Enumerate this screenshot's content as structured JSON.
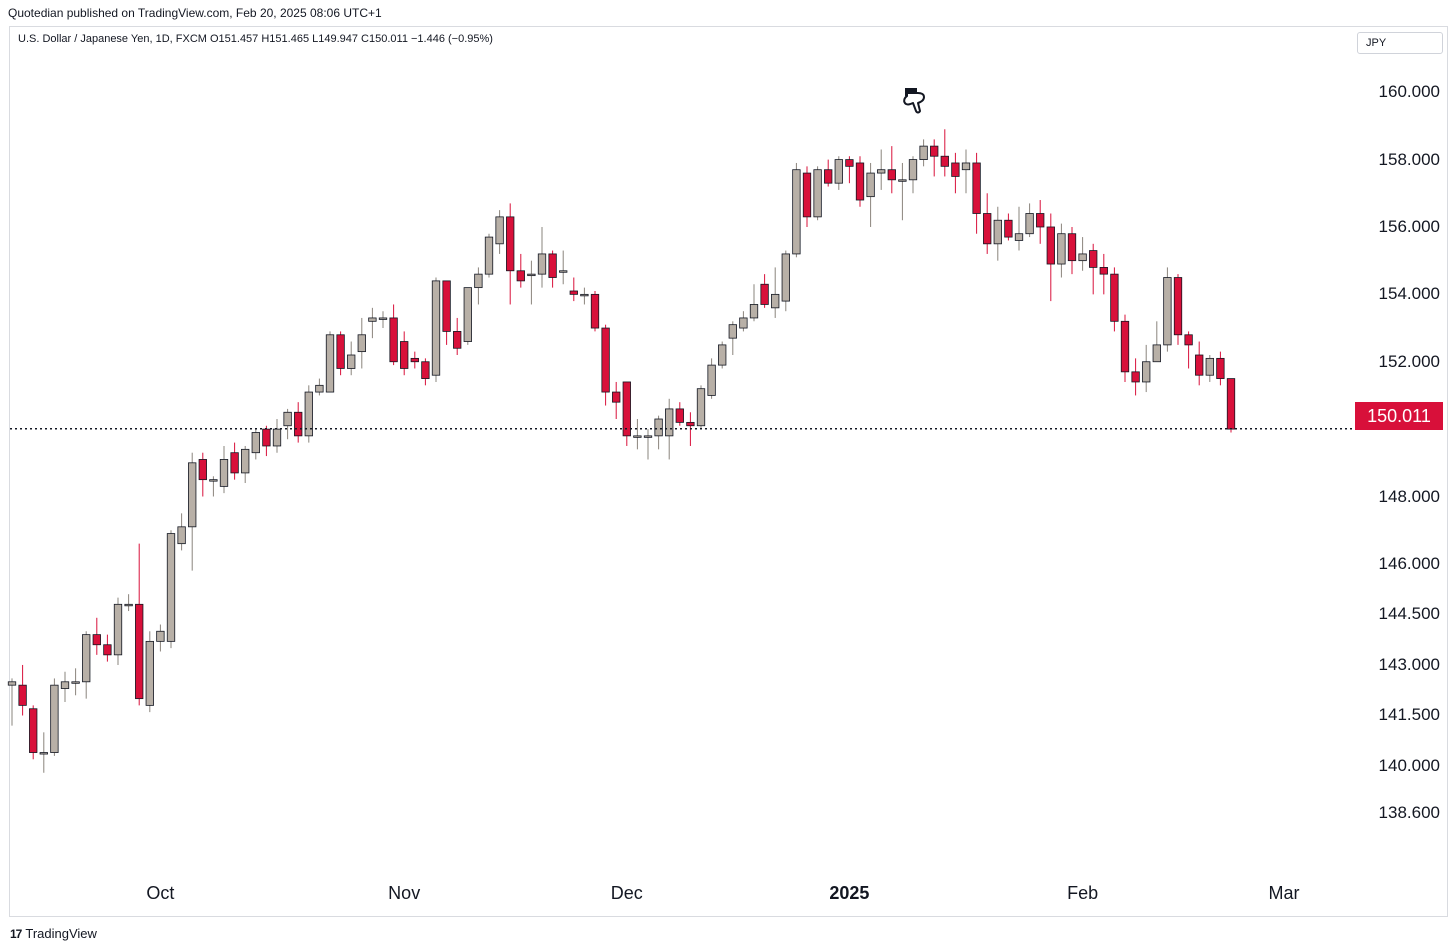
{
  "header": {
    "publisher_line": "Quotedian published on TradingView.com, Feb 20, 2025 08:06 UTC+1",
    "symbol_line": "U.S. Dollar / Japanese Yen, 1D, FXCM  O151.457  H151.465  L149.947  C150.011  −1.446 (−0.95%)",
    "currency": "JPY"
  },
  "footer": {
    "brand": "TradingView",
    "brand_icon": "tradingview-logo-icon"
  },
  "last_price_label": "150.011",
  "colors": {
    "up": "#b8b0a7",
    "down": "#d8103a",
    "badge": "#d8103a",
    "wick_up": "#8a847c",
    "wick_down": "#d8103a"
  },
  "annotation_icon": "pointing-hand-icon",
  "chart_data": {
    "type": "candlestick",
    "title": "U.S. Dollar / Japanese Yen, 1D, FXCM",
    "ylim": [
      138.0,
      160.6
    ],
    "y_ticks": [
      "160.000",
      "158.000",
      "156.000",
      "154.000",
      "152.000",
      "148.000",
      "146.000",
      "144.500",
      "143.000",
      "141.500",
      "140.000",
      "138.600"
    ],
    "x_labels": [
      {
        "label": "Oct",
        "index": 14,
        "bold": false
      },
      {
        "label": "Nov",
        "index": 37,
        "bold": false
      },
      {
        "label": "Dec",
        "index": 58,
        "bold": false
      },
      {
        "label": "2025",
        "index": 79,
        "bold": true
      },
      {
        "label": "Feb",
        "index": 101,
        "bold": false
      },
      {
        "label": "Mar",
        "index": 120,
        "bold": false
      }
    ],
    "last_close": 150.011,
    "candles": [
      [
        142.4,
        142.5,
        142.6,
        141.2
      ],
      [
        142.4,
        141.8,
        143.0,
        141.5
      ],
      [
        141.7,
        140.4,
        141.8,
        140.2
      ],
      [
        140.4,
        140.4,
        141.0,
        139.8
      ],
      [
        140.4,
        142.4,
        142.6,
        140.3
      ],
      [
        142.3,
        142.5,
        142.8,
        141.9
      ],
      [
        142.5,
        142.5,
        142.9,
        142.1
      ],
      [
        142.5,
        143.9,
        144.0,
        142.0
      ],
      [
        143.9,
        143.6,
        144.4,
        143.3
      ],
      [
        143.6,
        143.3,
        143.9,
        143.1
      ],
      [
        143.3,
        144.8,
        145.0,
        143.0
      ],
      [
        144.8,
        144.8,
        145.1,
        144.6
      ],
      [
        144.8,
        142.0,
        146.6,
        141.8
      ],
      [
        141.8,
        143.7,
        144.0,
        141.6
      ],
      [
        143.7,
        144.0,
        144.2,
        143.4
      ],
      [
        143.7,
        146.9,
        147.0,
        143.5
      ],
      [
        146.6,
        147.1,
        147.5,
        146.4
      ],
      [
        147.1,
        149.0,
        149.3,
        145.8
      ],
      [
        149.1,
        148.5,
        149.3,
        148.0
      ],
      [
        148.5,
        148.5,
        148.6,
        148.0
      ],
      [
        148.3,
        149.1,
        149.5,
        148.1
      ],
      [
        149.3,
        148.7,
        149.6,
        148.5
      ],
      [
        148.7,
        149.4,
        149.5,
        148.4
      ],
      [
        149.3,
        149.9,
        150.0,
        149.1
      ],
      [
        150.0,
        149.5,
        150.1,
        149.2
      ],
      [
        149.5,
        150.0,
        150.3,
        149.3
      ],
      [
        150.1,
        150.5,
        150.6,
        149.7
      ],
      [
        150.5,
        149.8,
        150.8,
        149.6
      ],
      [
        149.8,
        151.1,
        151.3,
        149.6
      ],
      [
        151.1,
        151.3,
        151.5,
        151.0
      ],
      [
        151.1,
        152.8,
        152.9,
        151.1
      ],
      [
        152.8,
        151.8,
        152.9,
        151.6
      ],
      [
        151.8,
        152.2,
        152.6,
        151.6
      ],
      [
        152.3,
        152.8,
        153.3,
        151.8
      ],
      [
        153.2,
        153.3,
        153.6,
        152.7
      ],
      [
        153.3,
        153.3,
        153.5,
        153.0
      ],
      [
        153.3,
        152.0,
        153.7,
        151.9
      ],
      [
        152.6,
        151.8,
        152.9,
        151.6
      ],
      [
        152.1,
        152.0,
        152.3,
        151.8
      ],
      [
        152.0,
        151.5,
        152.1,
        151.3
      ],
      [
        151.6,
        154.4,
        154.5,
        151.4
      ],
      [
        154.4,
        152.9,
        154.4,
        152.5
      ],
      [
        152.9,
        152.4,
        153.3,
        152.2
      ],
      [
        152.6,
        154.2,
        154.2,
        152.5
      ],
      [
        154.2,
        154.6,
        154.8,
        153.7
      ],
      [
        154.6,
        155.7,
        155.8,
        154.5
      ],
      [
        155.5,
        156.3,
        156.5,
        155.2
      ],
      [
        156.3,
        154.7,
        156.7,
        153.7
      ],
      [
        154.7,
        154.4,
        155.2,
        154.2
      ],
      [
        154.6,
        154.6,
        155.0,
        153.7
      ],
      [
        154.6,
        155.2,
        156.0,
        154.2
      ],
      [
        155.2,
        154.5,
        155.3,
        154.2
      ],
      [
        154.7,
        154.7,
        155.3,
        154.3
      ],
      [
        154.1,
        154.0,
        154.5,
        153.8
      ],
      [
        154.0,
        154.0,
        154.2,
        153.7
      ],
      [
        154.0,
        153.0,
        154.1,
        152.9
      ],
      [
        153.0,
        151.1,
        153.1,
        150.7
      ],
      [
        151.1,
        150.8,
        151.4,
        150.3
      ],
      [
        151.4,
        149.8,
        151.4,
        149.5
      ],
      [
        149.8,
        149.8,
        150.3,
        149.4
      ],
      [
        149.8,
        149.8,
        150.0,
        149.1
      ],
      [
        149.8,
        150.3,
        150.4,
        149.4
      ],
      [
        149.8,
        150.6,
        150.9,
        149.1
      ],
      [
        150.6,
        150.2,
        150.8,
        150.1
      ],
      [
        150.2,
        150.1,
        150.5,
        149.5
      ],
      [
        150.1,
        151.2,
        151.3,
        150.0
      ],
      [
        151.0,
        151.9,
        152.1,
        150.9
      ],
      [
        151.9,
        152.5,
        152.6,
        151.8
      ],
      [
        152.7,
        153.1,
        153.2,
        152.2
      ],
      [
        153.0,
        153.3,
        153.5,
        152.9
      ],
      [
        153.3,
        153.7,
        154.3,
        153.2
      ],
      [
        154.3,
        153.7,
        154.6,
        153.6
      ],
      [
        153.6,
        154.0,
        154.8,
        153.3
      ],
      [
        153.8,
        155.2,
        155.3,
        153.5
      ],
      [
        155.2,
        157.7,
        157.9,
        155.1
      ],
      [
        157.6,
        156.3,
        157.8,
        156.0
      ],
      [
        156.3,
        157.7,
        157.8,
        156.2
      ],
      [
        157.7,
        157.3,
        158.0,
        157.2
      ],
      [
        157.3,
        158.0,
        158.1,
        157.1
      ],
      [
        158.0,
        157.8,
        158.1,
        157.3
      ],
      [
        157.9,
        156.8,
        158.1,
        156.6
      ],
      [
        156.9,
        157.6,
        157.9,
        156.0
      ],
      [
        157.6,
        157.7,
        158.3,
        157.1
      ],
      [
        157.7,
        157.4,
        158.4,
        157.0
      ],
      [
        157.4,
        157.4,
        157.9,
        156.2
      ],
      [
        157.4,
        158.0,
        158.1,
        157.0
      ],
      [
        158.0,
        158.4,
        158.6,
        157.8
      ],
      [
        158.4,
        158.1,
        158.6,
        157.5
      ],
      [
        158.1,
        157.8,
        158.9,
        157.5
      ],
      [
        157.9,
        157.5,
        158.2,
        157.0
      ],
      [
        157.7,
        157.9,
        158.3,
        157.0
      ],
      [
        157.9,
        156.4,
        158.2,
        155.8
      ],
      [
        156.4,
        155.5,
        157.0,
        155.2
      ],
      [
        155.5,
        156.2,
        156.6,
        155.0
      ],
      [
        156.2,
        155.7,
        156.4,
        155.6
      ],
      [
        155.6,
        155.8,
        156.6,
        155.3
      ],
      [
        155.8,
        156.4,
        156.7,
        155.7
      ],
      [
        156.4,
        156.0,
        156.8,
        155.5
      ],
      [
        156.0,
        154.9,
        156.4,
        153.8
      ],
      [
        154.9,
        155.8,
        156.1,
        154.5
      ],
      [
        155.8,
        155.0,
        156.0,
        154.6
      ],
      [
        155.0,
        155.2,
        155.7,
        154.7
      ],
      [
        155.3,
        154.8,
        155.5,
        154.0
      ],
      [
        154.8,
        154.6,
        155.2,
        154.0
      ],
      [
        154.6,
        153.2,
        154.8,
        152.9
      ],
      [
        153.2,
        151.7,
        153.4,
        151.4
      ],
      [
        151.7,
        151.4,
        152.1,
        151.0
      ],
      [
        151.4,
        152.0,
        152.5,
        151.1
      ],
      [
        152.0,
        152.5,
        153.2,
        152.3
      ],
      [
        152.5,
        154.5,
        154.8,
        152.3
      ],
      [
        154.5,
        152.8,
        154.6,
        152.5
      ],
      [
        152.8,
        152.5,
        152.9,
        151.8
      ],
      [
        152.2,
        151.6,
        152.6,
        151.3
      ],
      [
        151.6,
        152.1,
        152.2,
        151.4
      ],
      [
        152.1,
        151.5,
        152.3,
        151.3
      ],
      [
        151.5,
        150.0,
        151.5,
        149.9
      ]
    ]
  }
}
